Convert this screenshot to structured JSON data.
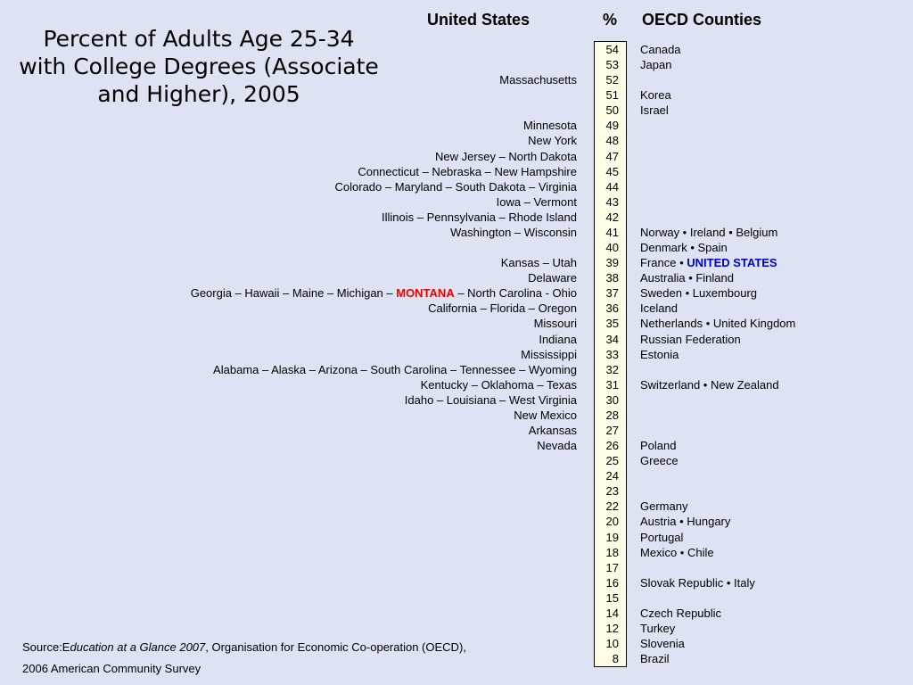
{
  "title": "Percent of Adults Age 25-34 with College Degrees (Associate and Higher), 2005",
  "headers": {
    "us": "United States",
    "pct": "%",
    "oecd": "OECD Counties"
  },
  "source": {
    "prefix": "Source:E",
    "italic": "ducation at a Glance 2007",
    "rest": ", Organisation for Economic Co-operation (OECD),",
    "line2": "2006 American Community Survey"
  },
  "chart_data": {
    "type": "table",
    "title": "Percent of Adults Age 25-34 with College Degrees (Associate and Higher), 2005",
    "columns": [
      "United States",
      "%",
      "OECD Counties"
    ],
    "rows": [
      {
        "pct": 54,
        "us": "",
        "oecd": "Canada"
      },
      {
        "pct": 53,
        "us": "",
        "oecd": "Japan"
      },
      {
        "pct": 52,
        "us": "Massachusetts",
        "oecd": ""
      },
      {
        "pct": 51,
        "us": "",
        "oecd": "Korea"
      },
      {
        "pct": 50,
        "us": "",
        "oecd": "Israel"
      },
      {
        "pct": 49,
        "us": "Minnesota",
        "oecd": ""
      },
      {
        "pct": 48,
        "us": "New York",
        "oecd": ""
      },
      {
        "pct": 47,
        "us": "New Jersey – North Dakota",
        "oecd": ""
      },
      {
        "pct": 45,
        "us": "Connecticut – Nebraska – New Hampshire",
        "oecd": ""
      },
      {
        "pct": 44,
        "us": "Colorado – Maryland – South Dakota – Virginia",
        "oecd": ""
      },
      {
        "pct": 43,
        "us": "Iowa – Vermont",
        "oecd": ""
      },
      {
        "pct": 42,
        "us": "Illinois – Pennsylvania – Rhode Island",
        "oecd": ""
      },
      {
        "pct": 41,
        "us": "Washington – Wisconsin",
        "oecd": "Norway • Ireland • Belgium"
      },
      {
        "pct": 40,
        "us": "",
        "oecd": "Denmark • Spain"
      },
      {
        "pct": 39,
        "us": "Kansas – Utah",
        "oecd": "France • ",
        "oecd_hl": "UNITED STATES"
      },
      {
        "pct": 38,
        "us": "Delaware",
        "oecd": "Australia • Finland"
      },
      {
        "pct": 37,
        "us": "Georgia – Hawaii – Maine – Michigan – ",
        "us_hl": "MONTANA",
        "us_after": " – North Carolina - Ohio",
        "oecd": "Sweden • Luxembourg"
      },
      {
        "pct": 36,
        "us": "California – Florida – Oregon",
        "oecd": "Iceland"
      },
      {
        "pct": 35,
        "us": "Missouri",
        "oecd": "Netherlands • United Kingdom"
      },
      {
        "pct": 34,
        "us": "Indiana",
        "oecd": "Russian Federation"
      },
      {
        "pct": 33,
        "us": "Mississippi",
        "oecd": "Estonia"
      },
      {
        "pct": 32,
        "us": "Alabama – Alaska – Arizona – South Carolina – Tennessee – Wyoming",
        "oecd": ""
      },
      {
        "pct": 31,
        "us": "Kentucky – Oklahoma – Texas",
        "oecd": "Switzerland • New Zealand"
      },
      {
        "pct": 30,
        "us": "Idaho – Louisiana – West Virginia",
        "oecd": ""
      },
      {
        "pct": 28,
        "us": "New Mexico",
        "oecd": ""
      },
      {
        "pct": 27,
        "us": "Arkansas",
        "oecd": ""
      },
      {
        "pct": 26,
        "us": "Nevada",
        "oecd": "Poland"
      },
      {
        "pct": 25,
        "us": "",
        "oecd": "Greece"
      },
      {
        "pct": 24,
        "us": "",
        "oecd": ""
      },
      {
        "pct": 23,
        "us": "",
        "oecd": ""
      },
      {
        "pct": 22,
        "us": "",
        "oecd": "Germany"
      },
      {
        "pct": 20,
        "us": "",
        "oecd": "Austria • Hungary"
      },
      {
        "pct": 19,
        "us": "",
        "oecd": "Portugal"
      },
      {
        "pct": 18,
        "us": "",
        "oecd": "Mexico • Chile"
      },
      {
        "pct": 17,
        "us": "",
        "oecd": ""
      },
      {
        "pct": 16,
        "us": "",
        "oecd": "Slovak Republic • Italy"
      },
      {
        "pct": 15,
        "us": "",
        "oecd": ""
      },
      {
        "pct": 14,
        "us": "",
        "oecd": "Czech Republic"
      },
      {
        "pct": 12,
        "us": "",
        "oecd": "Turkey"
      },
      {
        "pct": 10,
        "us": "",
        "oecd": "Slovenia"
      },
      {
        "pct": 8,
        "us": "",
        "oecd": "Brazil"
      }
    ],
    "colors": {
      "highlight_state": "#ee0000",
      "highlight_country": "#0000cc",
      "pct_column_bg": "#fffde6",
      "background": "#dde3f3"
    }
  }
}
